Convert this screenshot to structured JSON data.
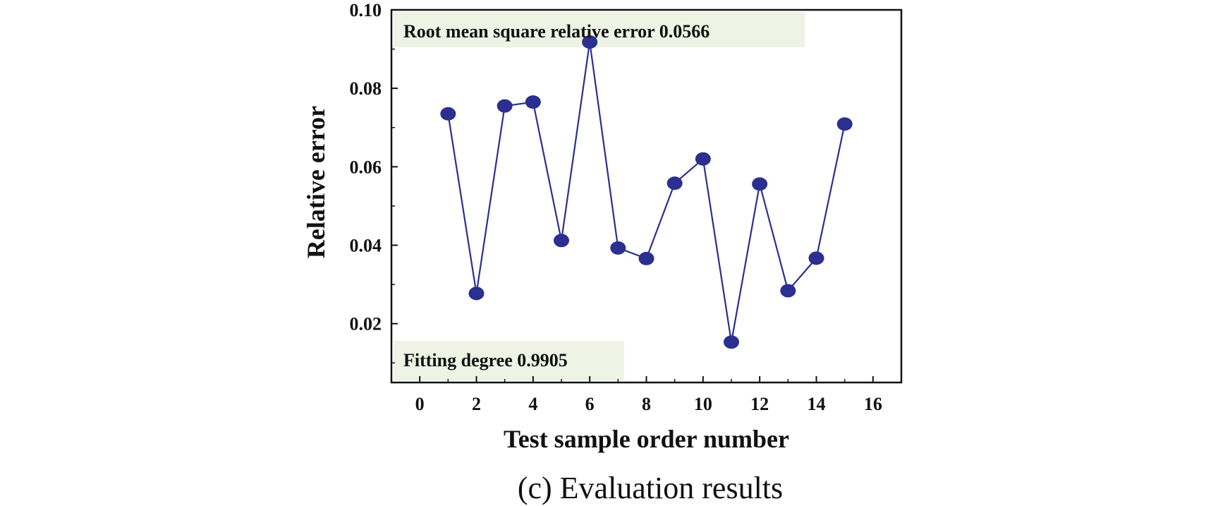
{
  "chart_data": {
    "type": "line",
    "caption": "(c) Evaluation results",
    "xlabel": "Test sample order number",
    "ylabel": "Relative error",
    "xlim": [
      -1,
      17
    ],
    "ylim": [
      0.005,
      0.1
    ],
    "xticks": [
      0,
      2,
      4,
      6,
      8,
      10,
      12,
      14,
      16
    ],
    "xtick_labels": [
      "0",
      "2",
      "4",
      "6",
      "8",
      "10",
      "12",
      "14",
      "16"
    ],
    "yticks": [
      0.02,
      0.04,
      0.06,
      0.08,
      0.1
    ],
    "ytick_labels": [
      "0.02",
      "0.04",
      "0.06",
      "0.08",
      "0.10"
    ],
    "grid": false,
    "series": [
      {
        "color": "#2b2f8f",
        "x": [
          1,
          2,
          3,
          4,
          5,
          6,
          7,
          8,
          9,
          10,
          11,
          12,
          13,
          14,
          15
        ],
        "values": [
          0.0735,
          0.0277,
          0.0755,
          0.0765,
          0.0412,
          0.0918,
          0.0393,
          0.0366,
          0.0558,
          0.062,
          0.0153,
          0.0556,
          0.0284,
          0.0367,
          0.0709
        ]
      }
    ],
    "annotations": [
      {
        "text": "Root mean square relative error 0.0566",
        "position": "top-left"
      },
      {
        "text": "Fitting degree 0.9905",
        "position": "bottom-left"
      }
    ]
  }
}
